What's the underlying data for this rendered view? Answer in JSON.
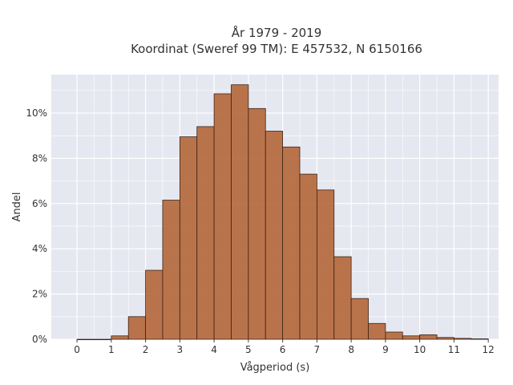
{
  "chart_data": {
    "type": "bar",
    "title": "År 1979 - 2019",
    "subtitle": "Koordinat (Sweref 99 TM): E 457532, N 6150166",
    "xlabel": "Vågperiod (s)",
    "ylabel": "Andel",
    "bin_width": 0.5,
    "bin_starts": [
      0,
      0.5,
      1,
      1.5,
      2,
      2.5,
      3,
      3.5,
      4,
      4.5,
      5,
      5.5,
      6,
      6.5,
      7,
      7.5,
      8,
      8.5,
      9,
      9.5,
      10,
      10.5,
      11,
      11.5
    ],
    "values": [
      0.0,
      0.0,
      0.15,
      1.0,
      3.05,
      6.15,
      8.95,
      9.4,
      10.85,
      11.25,
      10.2,
      9.2,
      8.5,
      7.3,
      6.6,
      3.65,
      1.8,
      0.7,
      0.32,
      0.15,
      0.2,
      0.08,
      0.04,
      0.02
    ],
    "xlim": [
      -0.75,
      12.3
    ],
    "ylim": [
      0,
      11.7
    ],
    "x_ticks": [
      "0",
      "1",
      "2",
      "3",
      "4",
      "5",
      "6",
      "7",
      "8",
      "9",
      "10",
      "11",
      "12"
    ],
    "y_ticks": [
      "0%",
      "2%",
      "4%",
      "6%",
      "8%",
      "10%"
    ],
    "bar_color": "#b5683d",
    "bar_edge_color": "#3a2416",
    "plot_background": "#e5e8f0",
    "grid": true
  }
}
